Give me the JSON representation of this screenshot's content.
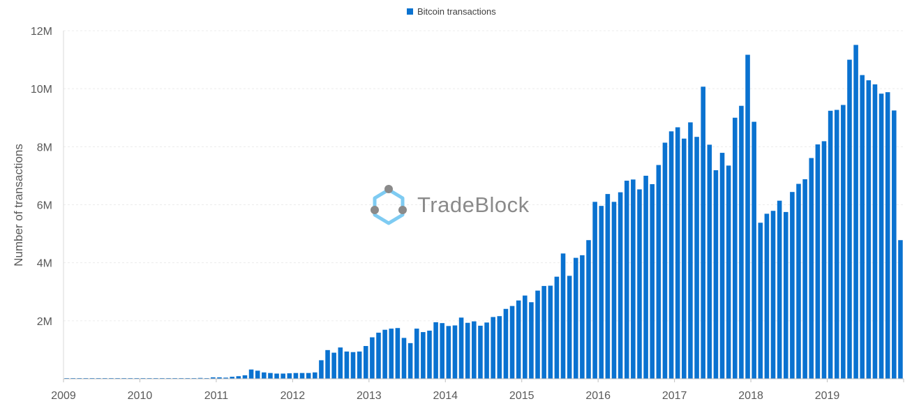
{
  "chart_data": {
    "type": "bar",
    "title": "",
    "xlabel": "",
    "ylabel": "Number of transactions",
    "ylim": [
      0,
      12000000
    ],
    "y_ticks": [
      {
        "value": 2000000,
        "label": "2M"
      },
      {
        "value": 4000000,
        "label": "4M"
      },
      {
        "value": 6000000,
        "label": "6M"
      },
      {
        "value": 8000000,
        "label": "8M"
      },
      {
        "value": 10000000,
        "label": "10M"
      },
      {
        "value": 12000000,
        "label": "12M"
      }
    ],
    "x_ticks": [
      "2009",
      "2010",
      "2011",
      "2012",
      "2013",
      "2014",
      "2015",
      "2016",
      "2017",
      "2018",
      "2019"
    ],
    "x_start_year": 2009,
    "legend": {
      "position": "top-center"
    },
    "grid": true,
    "series": [
      {
        "name": "Bitcoin transactions",
        "color": "#0a72d0",
        "values": [
          20000,
          20000,
          20000,
          20000,
          20000,
          20000,
          20000,
          20000,
          20000,
          20000,
          20000,
          20000,
          20000,
          20000,
          20000,
          20000,
          20000,
          20000,
          20000,
          20000,
          20000,
          30000,
          20000,
          50000,
          50000,
          40000,
          70000,
          90000,
          120000,
          320000,
          280000,
          220000,
          200000,
          180000,
          180000,
          190000,
          200000,
          200000,
          200000,
          220000,
          640000,
          990000,
          900000,
          1080000,
          940000,
          920000,
          940000,
          1130000,
          1430000,
          1590000,
          1690000,
          1730000,
          1750000,
          1410000,
          1230000,
          1730000,
          1610000,
          1660000,
          1950000,
          1920000,
          1820000,
          1840000,
          2110000,
          1930000,
          1980000,
          1830000,
          1940000,
          2130000,
          2160000,
          2410000,
          2510000,
          2700000,
          2870000,
          2640000,
          3040000,
          3200000,
          3210000,
          3520000,
          4320000,
          3550000,
          4170000,
          4260000,
          4780000,
          6100000,
          5960000,
          6370000,
          6100000,
          6430000,
          6830000,
          6870000,
          6530000,
          7000000,
          6710000,
          7370000,
          8140000,
          8530000,
          8670000,
          8280000,
          8840000,
          8340000,
          10070000,
          8070000,
          7190000,
          7790000,
          7350000,
          9000000,
          9410000,
          11170000,
          8860000,
          5380000,
          5690000,
          5790000,
          6140000,
          5750000,
          6440000,
          6720000,
          6880000,
          7610000,
          8080000,
          8190000,
          9240000,
          9270000,
          9440000,
          11000000,
          11510000,
          10470000,
          10290000,
          10150000,
          9830000,
          9880000,
          9250000,
          4780000
        ]
      }
    ]
  },
  "watermark": {
    "text": "TradeBlock"
  }
}
